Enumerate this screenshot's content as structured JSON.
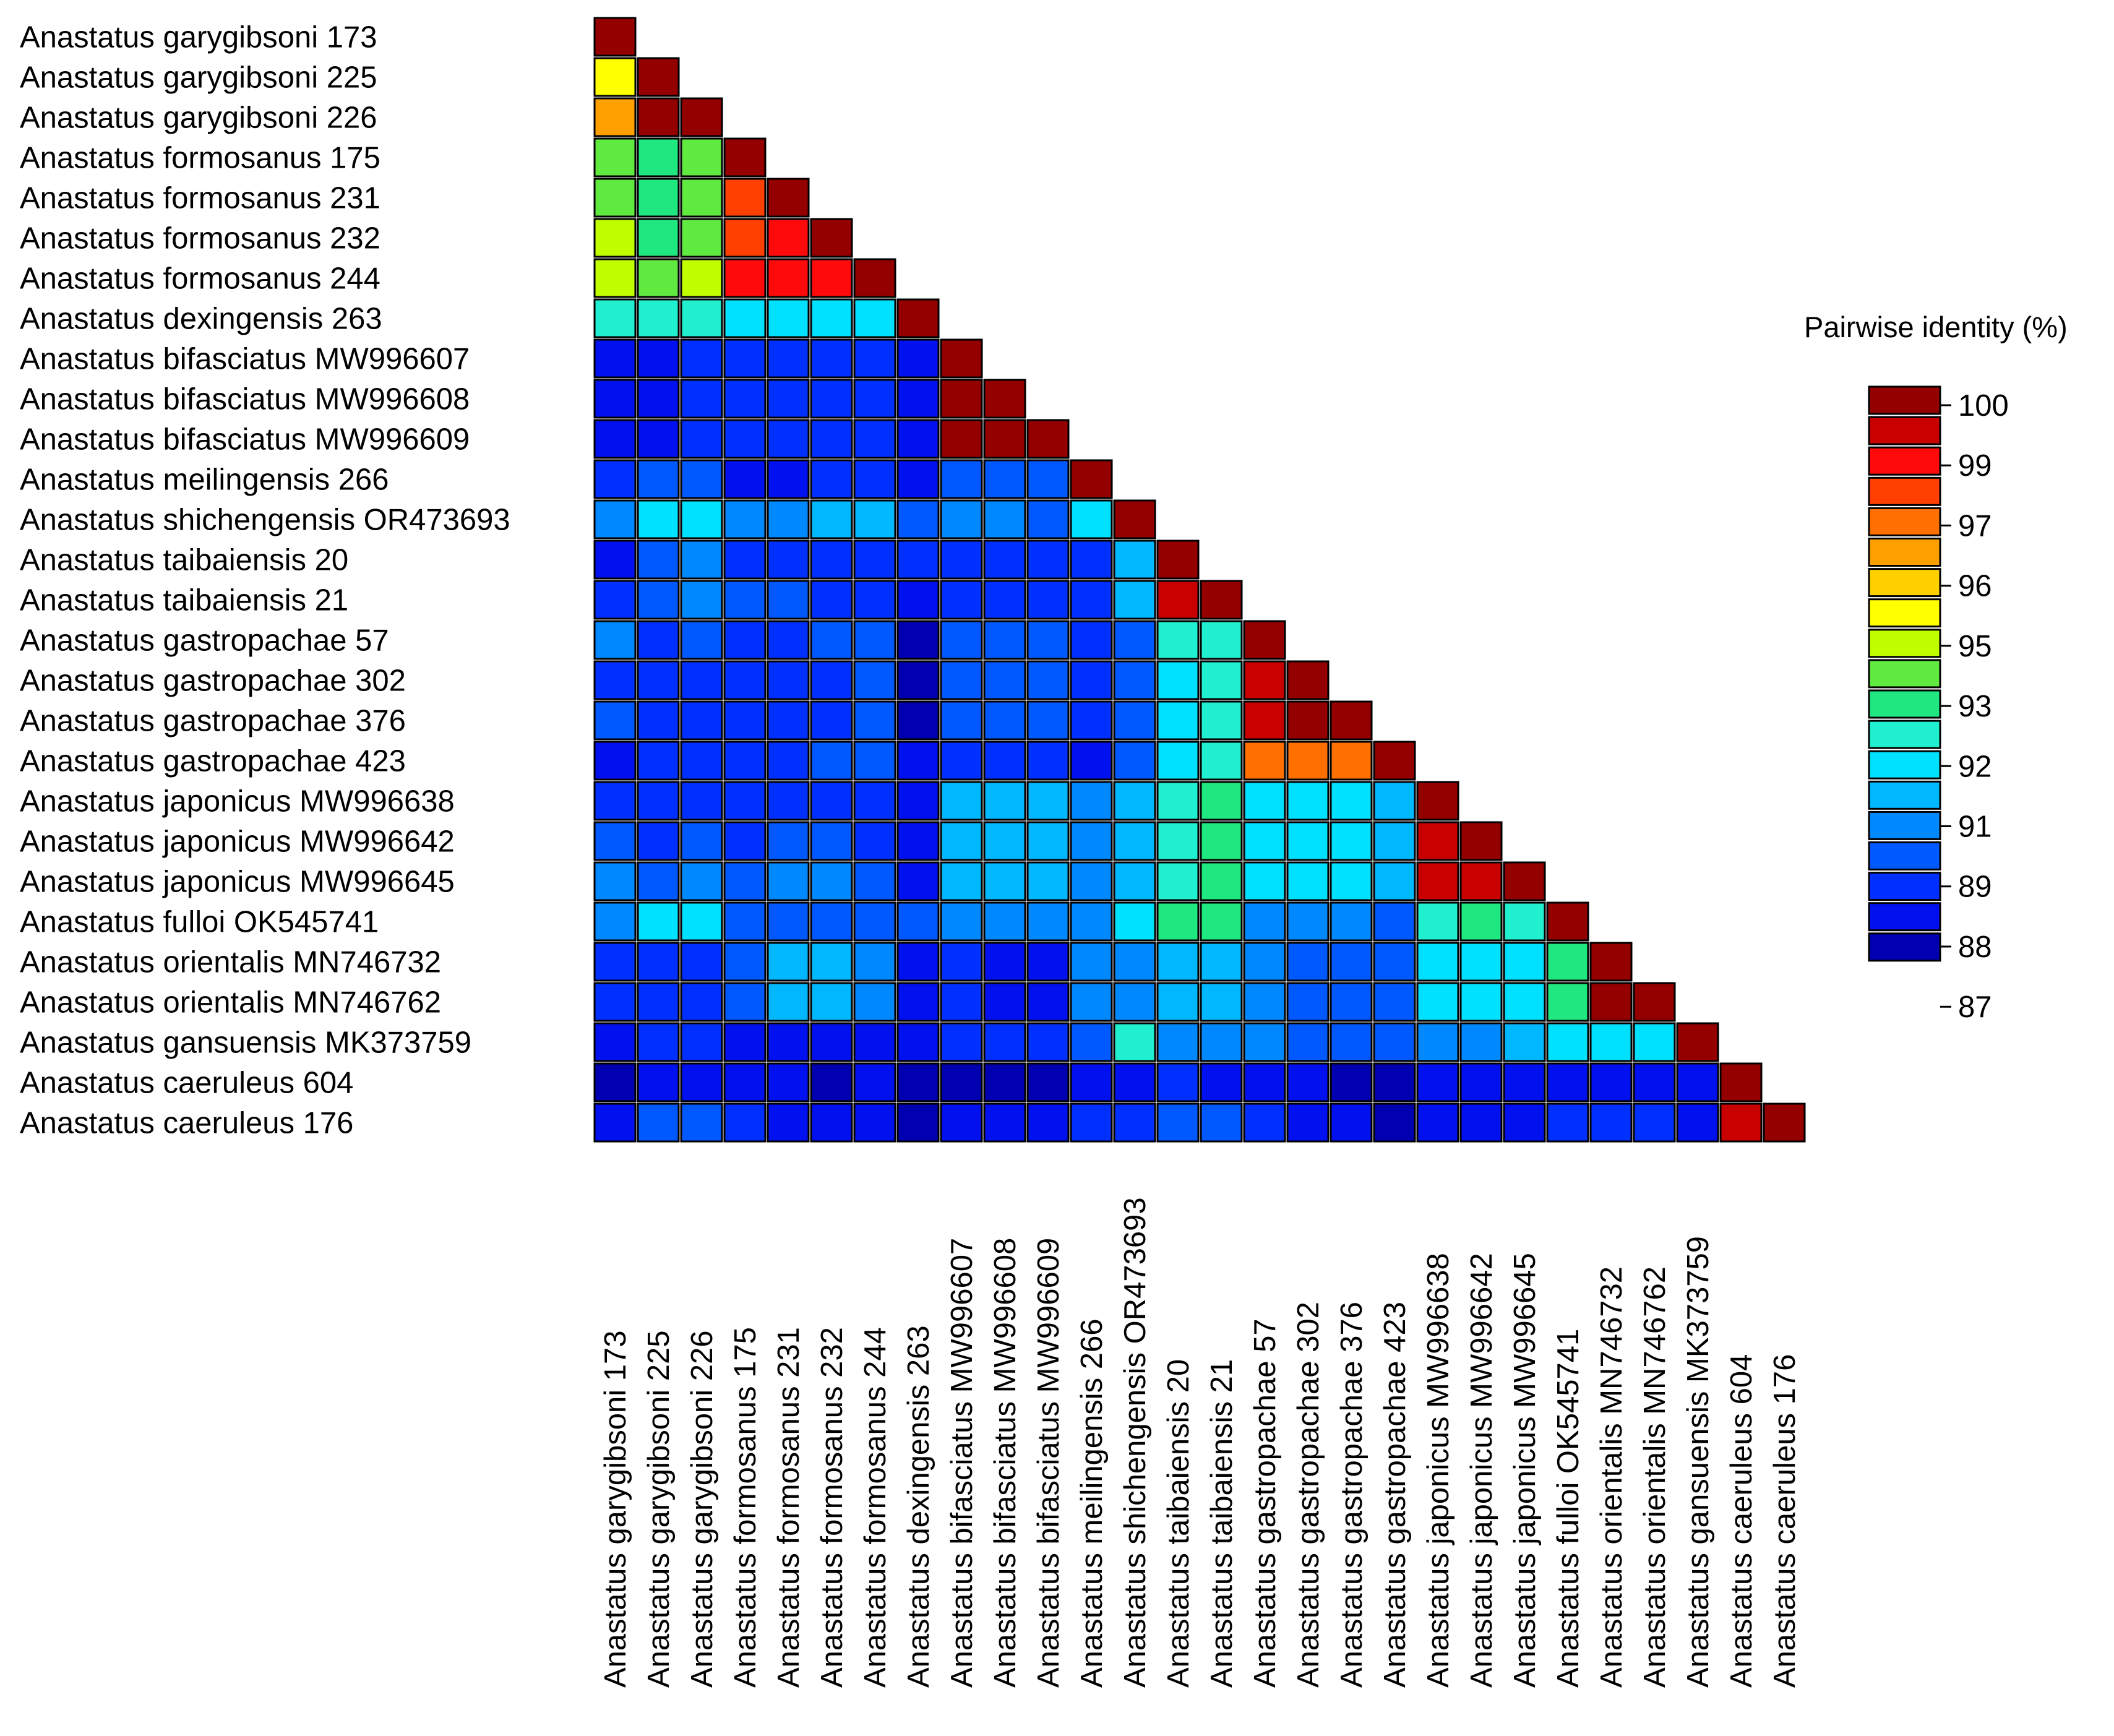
{
  "chart_data": {
    "type": "heatmap",
    "title": "",
    "labels": [
      "Anastatus garygibsoni 173",
      "Anastatus garygibsoni 225",
      "Anastatus garygibsoni 226",
      "Anastatus formosanus 175",
      "Anastatus formosanus 231",
      "Anastatus formosanus 232",
      "Anastatus formosanus 244",
      "Anastatus dexingensis 263",
      "Anastatus bifasciatus MW996607",
      "Anastatus bifasciatus MW996608",
      "Anastatus bifasciatus MW996609",
      "Anastatus meilingensis 266",
      "Anastatus shichengensis OR473693",
      "Anastatus taibaiensis 20",
      "Anastatus taibaiensis 21",
      "Anastatus gastropachae 57",
      "Anastatus gastropachae 302",
      "Anastatus gastropachae 376",
      "Anastatus gastropachae 423",
      "Anastatus japonicus MW996638",
      "Anastatus japonicus MW996642",
      "Anastatus japonicus MW996645",
      "Anastatus fulloi OK545741",
      "Anastatus orientalis MN746732",
      "Anastatus orientalis MN746762",
      "Anastatus gansuensis MK373759",
      "Anastatus caeruleus 604",
      "Anastatus caeruleus 176"
    ],
    "matrix_lower_triangular": [
      [
        100
      ],
      [
        95,
        100
      ],
      [
        96,
        99.5,
        100
      ],
      [
        93,
        92.5,
        93,
        100
      ],
      [
        93,
        92.5,
        93,
        97.5,
        100
      ],
      [
        94,
        92.5,
        93,
        97.5,
        98.5,
        100
      ],
      [
        94,
        93,
        94,
        98.5,
        98.5,
        98.5,
        100
      ],
      [
        91.5,
        92,
        91.8,
        91,
        91,
        91,
        91,
        100
      ],
      [
        87.5,
        87.5,
        88,
        88,
        88.5,
        88.5,
        88.5,
        87.5,
        100
      ],
      [
        87.5,
        87.5,
        88,
        88,
        88.5,
        88.5,
        88.5,
        87.5,
        100,
        100
      ],
      [
        87.5,
        87.5,
        88,
        88,
        88.5,
        88.5,
        88.5,
        87.5,
        100,
        100,
        100
      ],
      [
        88.5,
        88.8,
        89.2,
        87.8,
        87.5,
        88.5,
        88.3,
        87.8,
        88.8,
        88.8,
        88.8,
        100
      ],
      [
        90,
        91.2,
        91.2,
        90,
        89.5,
        90.5,
        90.5,
        89.3,
        89.5,
        89.5,
        89.3,
        91.2,
        100
      ],
      [
        87.5,
        89.2,
        89.7,
        88.3,
        88.5,
        88.3,
        88,
        88,
        88.5,
        88.3,
        88.2,
        88,
        90.5,
        100
      ],
      [
        88.5,
        89.2,
        89.7,
        88.7,
        88.7,
        88.5,
        88.2,
        87.8,
        88.5,
        88.3,
        88.2,
        88,
        90.5,
        99,
        100
      ],
      [
        89.5,
        88.5,
        88.7,
        88.5,
        88.5,
        88.8,
        89,
        87.2,
        89.3,
        89.3,
        89.2,
        88.3,
        89.3,
        91.5,
        92,
        100
      ],
      [
        88.5,
        88,
        88.3,
        88,
        88.2,
        88.5,
        88.8,
        87.2,
        89,
        89,
        88.9,
        88,
        89.2,
        91.3,
        91.7,
        99,
        100
      ],
      [
        88.8,
        88.2,
        88.3,
        88,
        88.3,
        88.5,
        88.8,
        87.2,
        89,
        89,
        88.9,
        88,
        89.2,
        91.3,
        91.7,
        99,
        100,
        100
      ],
      [
        87.8,
        88.5,
        88.5,
        88.3,
        88.5,
        88.7,
        88.8,
        87.3,
        88.5,
        88.3,
        88.2,
        87.7,
        88.8,
        91.3,
        91.5,
        96.5,
        96.8,
        96.8,
        100
      ],
      [
        88.5,
        88.2,
        88.5,
        88.2,
        88.5,
        88.5,
        88.5,
        87.5,
        90.2,
        90.2,
        90.2,
        89.8,
        90.5,
        92,
        92.3,
        91.3,
        91.2,
        91.2,
        90.2,
        100
      ],
      [
        88.8,
        88.5,
        88.7,
        88.5,
        88.7,
        88.7,
        88.5,
        87.5,
        90.2,
        90.2,
        90.2,
        89.8,
        90.5,
        92,
        92.3,
        91.3,
        91.2,
        91.2,
        90.2,
        99.2,
        100
      ],
      [
        90,
        89.3,
        89.5,
        89,
        89.5,
        90,
        89.3,
        87.5,
        90.2,
        90.2,
        90.2,
        89.8,
        90.5,
        92,
        92.3,
        91.3,
        91.2,
        91.2,
        90.2,
        98.8,
        98.8,
        100
      ],
      [
        89.5,
        90.8,
        91,
        89,
        89.3,
        89.3,
        89.2,
        89,
        89.8,
        89.8,
        89.8,
        89.5,
        90.8,
        92.5,
        92.7,
        89.8,
        89.5,
        89.5,
        89.2,
        92,
        92.2,
        91.8,
        100
      ],
      [
        88,
        88.3,
        88.5,
        89,
        90.3,
        90.2,
        89.5,
        87.5,
        88,
        87.8,
        87.8,
        89.7,
        89.8,
        90.2,
        90.2,
        89.8,
        89.3,
        89.3,
        88.8,
        91,
        91,
        91.2,
        92.3,
        100
      ],
      [
        88,
        88.3,
        88.5,
        89,
        90.5,
        90.3,
        89.5,
        87.5,
        88,
        87.8,
        87.8,
        89.7,
        89.8,
        90.2,
        90.2,
        89.8,
        89.3,
        89.3,
        88.8,
        91,
        91,
        91.2,
        92.3,
        99.5,
        100
      ],
      [
        87.8,
        88.3,
        88.3,
        87.5,
        87.8,
        87.7,
        87.5,
        87.7,
        88.3,
        88.3,
        88.3,
        89.2,
        91.5,
        90,
        90,
        89.5,
        89.2,
        89.2,
        88.8,
        90,
        90,
        90.2,
        91,
        91.2,
        91.2,
        100
      ],
      [
        87.2,
        87.5,
        87.8,
        87.3,
        87.3,
        87.2,
        87.3,
        86.7,
        87.2,
        87.1,
        87.2,
        87.5,
        87.8,
        88.3,
        87.8,
        87.5,
        87.3,
        87.2,
        86.5,
        87.5,
        87.3,
        87.5,
        87.5,
        87.7,
        87.7,
        87.3,
        100
      ],
      [
        87.5,
        88.8,
        89.2,
        88,
        87.8,
        87.6,
        87.5,
        86.8,
        87.7,
        87.6,
        87.6,
        88.3,
        88.5,
        88.8,
        88.7,
        88,
        87.5,
        87.5,
        86.8,
        87.7,
        87.5,
        87.7,
        88,
        88.2,
        88.2,
        87.8,
        99,
        100
      ]
    ],
    "legend": {
      "title": "Pairwise identity (%)",
      "ticks": [
        100,
        99,
        97,
        96,
        95,
        93,
        92,
        91,
        89,
        88,
        87
      ],
      "range": [
        86.5,
        100
      ],
      "colors": [
        "#940000",
        "#c80000",
        "#ff0a0a",
        "#ff4000",
        "#ff7000",
        "#ffa000",
        "#ffd000",
        "#ffff00",
        "#c0ff00",
        "#60ea40",
        "#20e880",
        "#20f0d0",
        "#00e0ff",
        "#00b8ff",
        "#0088ff",
        "#0058ff",
        "#0030ff",
        "#0010ee",
        "#0000b0"
      ],
      "placement": "right"
    }
  }
}
